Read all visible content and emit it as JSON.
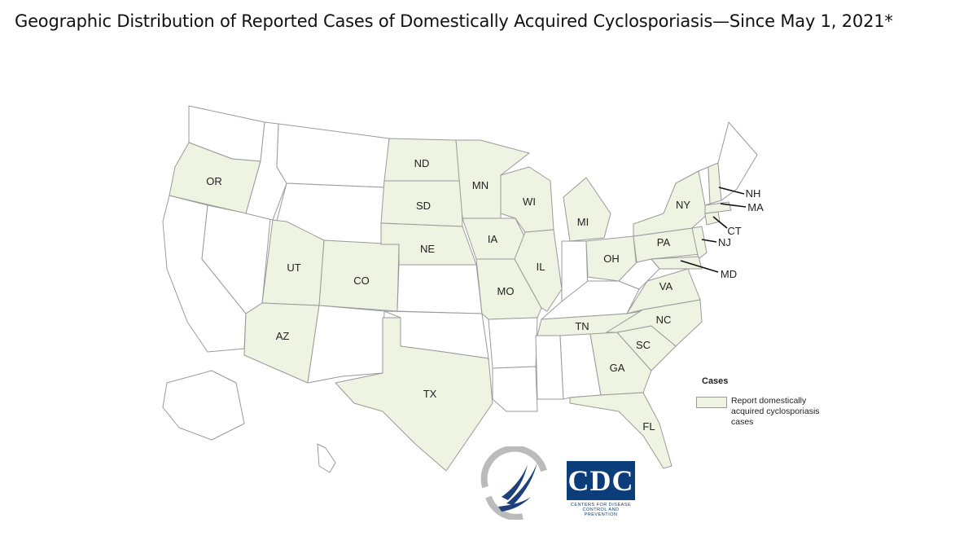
{
  "title": "Geographic Distribution of Reported Cases of Domestically Acquired Cyclosporiasis—Since May 1, 2021*",
  "colors": {
    "reported": "#eef3e2",
    "not_reported": "#ffffff",
    "border": "#9a9a9a"
  },
  "map": {
    "reporting_states": [
      "OR",
      "UT",
      "CO",
      "AZ",
      "ND",
      "SD",
      "NE",
      "TX",
      "MN",
      "IA",
      "MO",
      "WI",
      "IL",
      "MI",
      "OH",
      "TN",
      "GA",
      "SC",
      "NC",
      "VA",
      "FL",
      "PA",
      "NY",
      "NJ",
      "MD",
      "CT",
      "MA",
      "NH"
    ],
    "labels": {
      "OR": "OR",
      "UT": "UT",
      "CO": "CO",
      "AZ": "AZ",
      "ND": "ND",
      "SD": "SD",
      "NE": "NE",
      "TX": "TX",
      "MN": "MN",
      "IA": "IA",
      "MO": "MO",
      "WI": "WI",
      "IL": "IL",
      "MI": "MI",
      "OH": "OH",
      "TN": "TN",
      "GA": "GA",
      "SC": "SC",
      "NC": "NC",
      "VA": "VA",
      "FL": "FL",
      "PA": "PA",
      "NY": "NY",
      "NH": "NH",
      "MA": "MA",
      "CT": "CT",
      "NJ": "NJ",
      "MD": "MD"
    }
  },
  "legend": {
    "title": "Cases",
    "item": "Report domestically acquired cyclosporiasis cases"
  },
  "logos": {
    "hhs": "hhs-logo",
    "cdc": "CDC",
    "cdc_sub": "CENTERS FOR DISEASE CONTROL AND PREVENTION"
  }
}
